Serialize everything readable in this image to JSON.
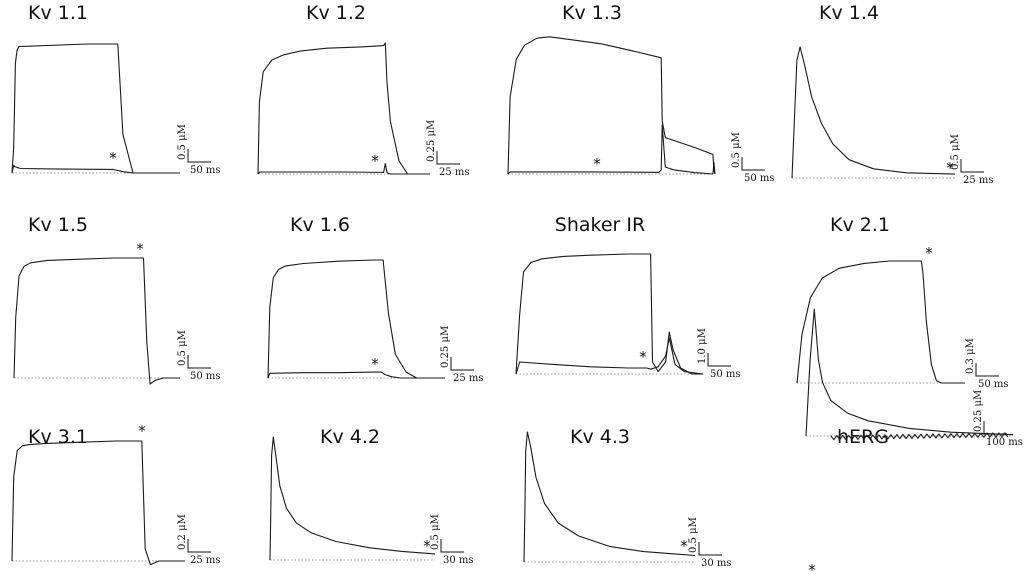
{
  "chart_data": [
    {
      "type": "line",
      "title": "Kv 1.1",
      "scalebar": {
        "y": "0.5 μM",
        "x": "50 ms"
      },
      "series": [
        {
          "name": "",
          "x": [
            0,
            1,
            2,
            3,
            4,
            45,
            63,
            66,
            72,
            100
          ],
          "y": [
            0,
            0.2,
            0.85,
            0.95,
            0.98,
            1,
            1,
            0.3,
            0,
            0
          ]
        },
        {
          "name": "",
          "x": [
            0,
            1,
            1.5,
            5,
            30,
            60,
            66,
            72,
            100
          ],
          "y": [
            0,
            0.06,
            0.05,
            0.035,
            0.03,
            0.028,
            0.01,
            0,
            0
          ]
        }
      ]
    },
    {
      "type": "line",
      "title": "Kv 1.2",
      "scalebar": {
        "y": "0.25 μM",
        "x": "25 ms"
      },
      "series": [
        {
          "name": "",
          "x": [
            0,
            0.8,
            3,
            8,
            15,
            25,
            40,
            60,
            73,
            74,
            75,
            77,
            82,
            87,
            100
          ],
          "y": [
            0,
            0.55,
            0.78,
            0.87,
            0.91,
            0.94,
            0.96,
            0.97,
            0.98,
            1,
            0.7,
            0.4,
            0.1,
            0,
            0
          ]
        },
        {
          "name": "",
          "x": [
            0,
            1,
            20,
            50,
            73,
            74,
            75,
            77,
            100
          ],
          "y": [
            0,
            0.015,
            0.015,
            0.015,
            0.012,
            0.08,
            0.01,
            0,
            0
          ]
        }
      ]
    },
    {
      "type": "line",
      "title": "Kv 1.3",
      "scalebar": {
        "y": "0.5 μM",
        "x": "50 ms"
      },
      "series": [
        {
          "name": "",
          "x": [
            0,
            1,
            4,
            8,
            14,
            20,
            30,
            45,
            60,
            74,
            74.5,
            76,
            78,
            90,
            99,
            99.5,
            100
          ],
          "y": [
            0,
            0.55,
            0.82,
            0.92,
            0.97,
            0.98,
            0.96,
            0.93,
            0.88,
            0.83,
            0.38,
            0.26,
            0.25,
            0.19,
            0.14,
            0.02,
            0
          ]
        },
        {
          "name": "",
          "x": [
            0,
            1,
            40,
            73,
            74,
            74.5,
            76,
            80,
            90,
            99,
            99.5,
            100
          ],
          "y": [
            0,
            0.015,
            0.015,
            0.012,
            0.03,
            0.35,
            0.05,
            0.03,
            0.01,
            0,
            0.08,
            0
          ]
        }
      ]
    },
    {
      "type": "line",
      "title": "Kv 1.4",
      "scalebar": {
        "y": "0.5 μM",
        "x": "25 ms"
      },
      "series": [
        {
          "name": "",
          "x": [
            0,
            1,
            3,
            5,
            8,
            12,
            18,
            25,
            35,
            50,
            70,
            100
          ],
          "y": [
            0,
            0.3,
            0.9,
            1,
            0.85,
            0.62,
            0.42,
            0.26,
            0.14,
            0.07,
            0.04,
            0.03
          ]
        }
      ]
    },
    {
      "type": "line",
      "title": "Kv 1.5",
      "scalebar": {
        "y": "0.5 μM",
        "x": "50 ms"
      },
      "series": [
        {
          "name": "",
          "x": [
            0,
            1,
            3,
            6,
            10,
            20,
            40,
            60,
            78,
            80,
            82,
            85,
            90,
            100
          ],
          "y": [
            0,
            0.5,
            0.85,
            0.93,
            0.96,
            0.98,
            0.99,
            1,
            1,
            0.3,
            -0.05,
            -0.02,
            0,
            0
          ]
        }
      ]
    },
    {
      "type": "line",
      "title": "Kv 1.6",
      "scalebar": {
        "y": "0.25 μM",
        "x": "25 ms"
      },
      "series": [
        {
          "name": "",
          "x": [
            0,
            1,
            3,
            6,
            10,
            20,
            40,
            60,
            65,
            68,
            72,
            78,
            84,
            100
          ],
          "y": [
            0,
            0.6,
            0.85,
            0.92,
            0.95,
            0.97,
            0.99,
            1,
            1,
            0.55,
            0.2,
            0.05,
            0,
            0
          ]
        },
        {
          "name": "",
          "x": [
            0,
            1,
            20,
            40,
            60,
            64,
            66,
            70,
            75,
            80,
            100
          ],
          "y": [
            0,
            0.04,
            0.045,
            0.045,
            0.05,
            0.05,
            0.03,
            0.01,
            0,
            0,
            0
          ]
        }
      ]
    },
    {
      "type": "line",
      "title": "Shaker IR",
      "scalebar": {
        "y": "1.0 μM",
        "x": "50 ms"
      },
      "series": [
        {
          "name": "",
          "x": [
            0,
            2,
            4,
            8,
            14,
            25,
            40,
            60,
            72,
            73,
            76,
            80,
            82,
            84,
            88,
            94,
            100
          ],
          "y": [
            0,
            0.5,
            0.85,
            0.93,
            0.96,
            0.98,
            0.99,
            1,
            1,
            0.1,
            0.02,
            0.1,
            0.35,
            0.2,
            0.05,
            0,
            0
          ]
        },
        {
          "name": "",
          "x": [
            0,
            2,
            20,
            40,
            60,
            70,
            72,
            76,
            80,
            82,
            85,
            90,
            100
          ],
          "y": [
            0,
            0.1,
            0.08,
            0.06,
            0.05,
            0.05,
            0.04,
            0.06,
            0.15,
            0.3,
            0.08,
            0.02,
            0
          ]
        }
      ]
    },
    {
      "type": "line",
      "title": "Kv 2.1",
      "scalebar": {
        "y": "0.3 μM",
        "x": "50 ms"
      },
      "series": [
        {
          "name": "",
          "x": [
            0,
            3,
            8,
            15,
            25,
            40,
            55,
            74,
            75,
            77,
            80,
            83,
            86,
            100
          ],
          "y": [
            0,
            0.4,
            0.7,
            0.86,
            0.94,
            0.98,
            1,
            1,
            0.9,
            0.5,
            0.15,
            0.02,
            0,
            0
          ]
        }
      ]
    },
    {
      "type": "line",
      "title": "Kv 3.1",
      "scalebar": {
        "y": "0.2 μM",
        "x": "25 ms"
      },
      "series": [
        {
          "name": "",
          "x": [
            0,
            1,
            3,
            6,
            10,
            20,
            40,
            60,
            75,
            77,
            80,
            85,
            100
          ],
          "y": [
            0,
            0.7,
            0.92,
            0.96,
            0.97,
            0.98,
            0.99,
            1,
            1,
            0.1,
            -0.03,
            0,
            0
          ]
        }
      ]
    },
    {
      "type": "line",
      "title": "Kv 4.2",
      "scalebar": {
        "y": "0.5 μM",
        "x": "30 ms"
      },
      "series": [
        {
          "name": "",
          "x": [
            0,
            0.5,
            1,
            2,
            3.5,
            6,
            10,
            16,
            25,
            40,
            60,
            80,
            100
          ],
          "y": [
            0,
            0.4,
            0.85,
            1,
            0.85,
            0.6,
            0.42,
            0.3,
            0.22,
            0.15,
            0.1,
            0.07,
            0.05
          ]
        }
      ]
    },
    {
      "type": "line",
      "title": "Kv 4.3",
      "scalebar": {
        "y": "0.5 μM",
        "x": "30 ms"
      },
      "series": [
        {
          "name": "",
          "x": [
            0,
            0.5,
            1,
            2,
            4,
            7,
            12,
            20,
            32,
            50,
            70,
            90,
            100
          ],
          "y": [
            0,
            0.4,
            0.85,
            1,
            0.88,
            0.65,
            0.45,
            0.3,
            0.2,
            0.12,
            0.08,
            0.06,
            0.05
          ]
        }
      ]
    },
    {
      "type": "line",
      "title": "hERG",
      "scalebar": {
        "y": "0.25 μM",
        "x": "100 ms"
      },
      "series": [
        {
          "name": "",
          "x": [
            0,
            2,
            4,
            6,
            8,
            12,
            20,
            30,
            50,
            70,
            100
          ],
          "y": [
            0,
            -0.6,
            -1,
            -0.6,
            -0.42,
            -0.28,
            -0.18,
            -0.12,
            -0.06,
            -0.03,
            -0.01
          ]
        }
      ]
    }
  ],
  "markers": {
    "asterisk": "*"
  }
}
